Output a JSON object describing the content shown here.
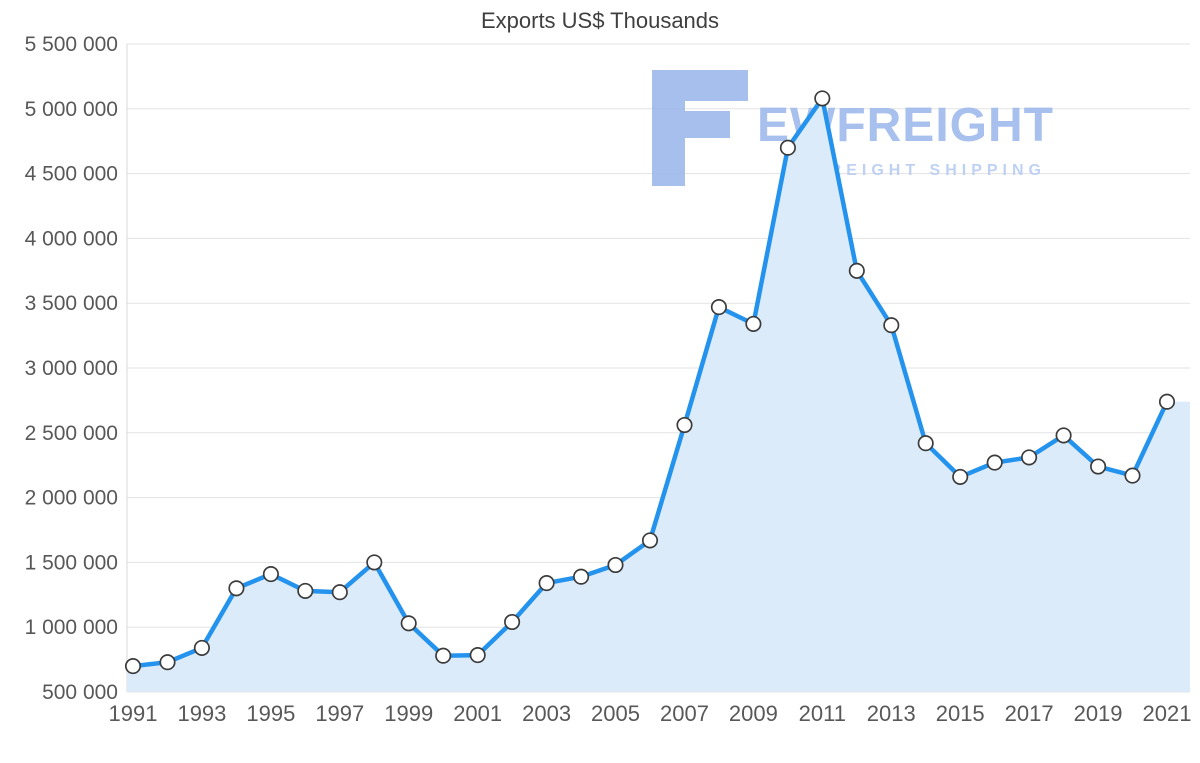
{
  "chart_data": {
    "type": "area",
    "title": "Exports US$ Thousands",
    "x": [
      1991,
      1992,
      1993,
      1994,
      1995,
      1996,
      1997,
      1998,
      1999,
      2000,
      2001,
      2002,
      2003,
      2004,
      2005,
      2006,
      2007,
      2008,
      2009,
      2010,
      2011,
      2012,
      2013,
      2014,
      2015,
      2016,
      2017,
      2018,
      2019,
      2020,
      2021
    ],
    "values": [
      700000,
      730000,
      840000,
      1300000,
      1410000,
      1280000,
      1270000,
      1500000,
      1030000,
      780000,
      785000,
      1040000,
      1340000,
      1390000,
      1480000,
      1670000,
      2560000,
      3470000,
      3340000,
      4700000,
      5080000,
      3750000,
      3330000,
      2420000,
      2160000,
      2270000,
      2310000,
      2480000,
      2240000,
      2170000,
      2740000
    ],
    "ylabel": "",
    "xlabel": "",
    "ylim": [
      500000,
      5500000
    ],
    "ytick_step": 500000,
    "ytick_labels": [
      "500 000",
      "1 000 000",
      "1 500 000",
      "2 000 000",
      "2 500 000",
      "3 000 000",
      "3 500 000",
      "4 000 000",
      "4 500 000",
      "5 000 000",
      "5 500 000"
    ],
    "xtick_labels": [
      "1991",
      "1993",
      "1995",
      "1997",
      "1999",
      "2001",
      "2003",
      "2005",
      "2007",
      "2009",
      "2011",
      "2013",
      "2015",
      "2017",
      "2019",
      "2021"
    ],
    "grid": true,
    "legend": "none",
    "line_color": "#2493ee",
    "fill_color": "#dcebfa",
    "grid_color": "#e3e3e3",
    "axis_color": "#d9d9d9",
    "tick_color": "#585858",
    "marker": {
      "shape": "circle",
      "fill": "#ffffff",
      "stroke": "#3c3c3c"
    }
  },
  "watermark": {
    "brand": "EWFREIGHT",
    "subtitle": "FREIGHT SHIPPING",
    "logo_color": "#9db9ec",
    "brand_color": "#9fbaec",
    "subtitle_color": "#b9cdf2"
  }
}
